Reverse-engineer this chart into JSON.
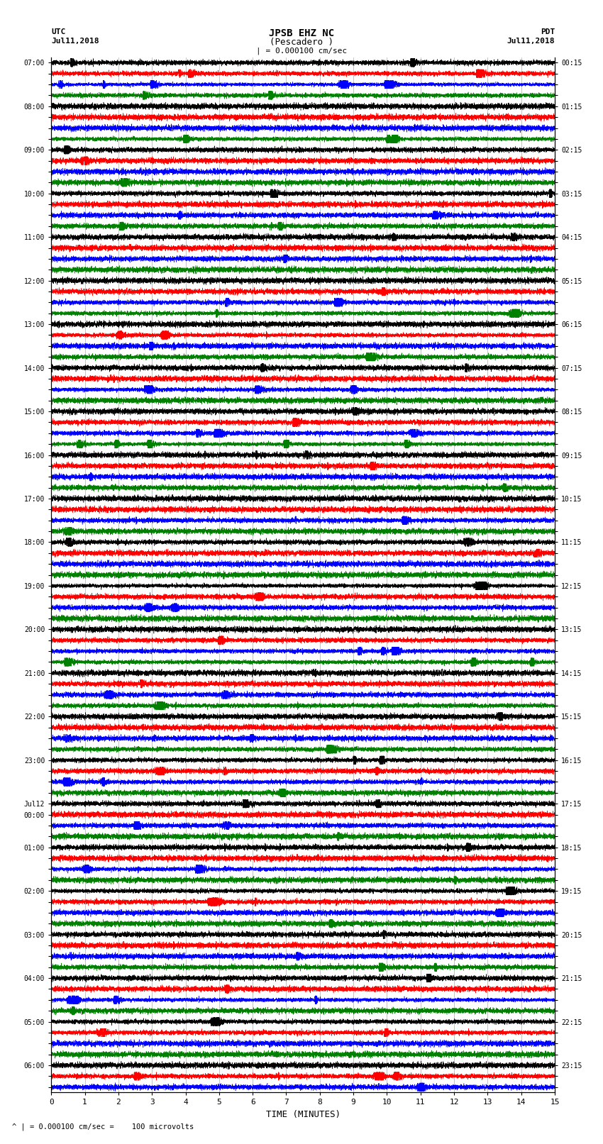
{
  "title_line1": "JPSB EHZ NC",
  "title_line2": "(Pescadero )",
  "title_line3": "| = 0.000100 cm/sec",
  "left_label_1": "UTC",
  "left_label_2": "Jul11,2018",
  "right_label_1": "PDT",
  "right_label_2": "Jul11,2018",
  "xlabel": "TIME (MINUTES)",
  "bottom_note": "^ | = 0.000100 cm/sec =    100 microvolts",
  "left_times": [
    "07:00",
    "",
    "",
    "",
    "08:00",
    "",
    "",
    "",
    "09:00",
    "",
    "",
    "",
    "10:00",
    "",
    "",
    "",
    "11:00",
    "",
    "",
    "",
    "12:00",
    "",
    "",
    "",
    "13:00",
    "",
    "",
    "",
    "14:00",
    "",
    "",
    "",
    "15:00",
    "",
    "",
    "",
    "16:00",
    "",
    "",
    "",
    "17:00",
    "",
    "",
    "",
    "18:00",
    "",
    "",
    "",
    "19:00",
    "",
    "",
    "",
    "20:00",
    "",
    "",
    "",
    "21:00",
    "",
    "",
    "",
    "22:00",
    "",
    "",
    "",
    "23:00",
    "",
    "",
    "",
    "Jul12",
    "00:00",
    "",
    "",
    "01:00",
    "",
    "",
    "",
    "02:00",
    "",
    "",
    "",
    "03:00",
    "",
    "",
    "",
    "04:00",
    "",
    "",
    "",
    "05:00",
    "",
    "",
    "",
    "06:00",
    "",
    ""
  ],
  "right_times": [
    "00:15",
    "",
    "",
    "",
    "01:15",
    "",
    "",
    "",
    "02:15",
    "",
    "",
    "",
    "03:15",
    "",
    "",
    "",
    "04:15",
    "",
    "",
    "",
    "05:15",
    "",
    "",
    "",
    "06:15",
    "",
    "",
    "",
    "07:15",
    "",
    "",
    "",
    "08:15",
    "",
    "",
    "",
    "09:15",
    "",
    "",
    "",
    "10:15",
    "",
    "",
    "",
    "11:15",
    "",
    "",
    "",
    "12:15",
    "",
    "",
    "",
    "13:15",
    "",
    "",
    "",
    "14:15",
    "",
    "",
    "",
    "15:15",
    "",
    "",
    "",
    "16:15",
    "",
    "",
    "",
    "17:15",
    "",
    "",
    "",
    "18:15",
    "",
    "",
    "",
    "19:15",
    "",
    "",
    "",
    "20:15",
    "",
    "",
    "",
    "21:15",
    "",
    "",
    "",
    "22:15",
    "",
    "",
    "",
    "23:15",
    "",
    ""
  ],
  "trace_colors": [
    "black",
    "red",
    "blue",
    "green"
  ],
  "n_rows": 95,
  "x_ticks": [
    0,
    1,
    2,
    3,
    4,
    5,
    6,
    7,
    8,
    9,
    10,
    11,
    12,
    13,
    14,
    15
  ],
  "bg_color": "white",
  "trace_amplitude": 0.38,
  "noise_base": 0.12,
  "gridline_color": "#888888"
}
